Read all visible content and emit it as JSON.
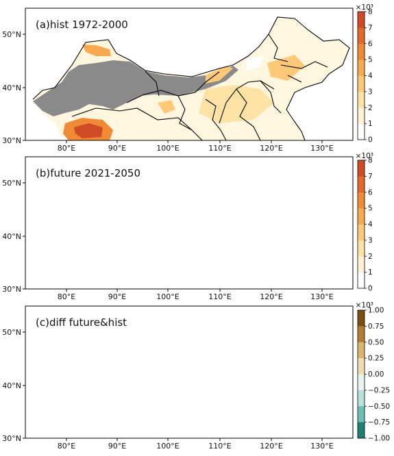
{
  "panels": [
    {
      "id": "a",
      "title": "(a)hist 1972-2000",
      "colorbar": {
        "scale_label": "×10³",
        "ticks": [
          "0",
          "1",
          "2",
          "3",
          "4",
          "5",
          "6",
          "7",
          "8"
        ],
        "colors": [
          "#ffffff",
          "#fff3d6",
          "#fde2a6",
          "#fdc978",
          "#f9a94f",
          "#f08a34",
          "#e3692a",
          "#d04a25"
        ]
      }
    },
    {
      "id": "b",
      "title": "(b)future 2021-2050",
      "colorbar": {
        "scale_label": "×10³",
        "ticks": [
          "0",
          "1",
          "2",
          "3",
          "4",
          "5",
          "6",
          "7",
          "8"
        ],
        "colors": [
          "#ffffff",
          "#fff3d6",
          "#fde2a6",
          "#fdc978",
          "#f9a94f",
          "#f08a34",
          "#e3692a",
          "#d04a25"
        ]
      }
    },
    {
      "id": "c",
      "title": "(c)diff future&hist",
      "colorbar": {
        "scale_label": "×10³",
        "ticks": [
          "1.00",
          "0.75",
          "0.50",
          "0.25",
          "0.00",
          "−0.25",
          "−0.50",
          "−0.75",
          "−1.00"
        ],
        "colors": [
          "#7a4f12",
          "#b27d32",
          "#d9b46f",
          "#efdcb2",
          "#e9f3ee",
          "#b9e0da",
          "#6cbfb4",
          "#1f7f71"
        ]
      }
    }
  ],
  "axes": {
    "x_ticks": [
      "80°E",
      "90°E",
      "100°E",
      "110°E",
      "120°E",
      "130°E"
    ],
    "y_ticks": [
      "50°N",
      "40°N",
      "30°N"
    ]
  },
  "colors": {
    "masked_region": "#8a8a8a",
    "boundary": "#000000"
  }
}
